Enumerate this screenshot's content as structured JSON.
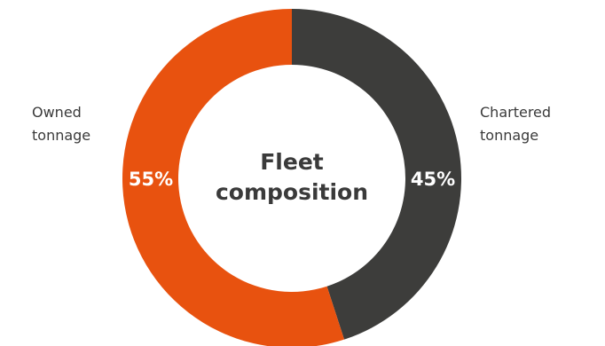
{
  "chart_data": {
    "type": "pie",
    "title_lines": [
      "Fleet",
      "composition"
    ],
    "slices": [
      {
        "label_lines": [
          "Chartered",
          "tonnage"
        ],
        "value": 45,
        "display": "45%",
        "color": "#3d3d3b"
      },
      {
        "label_lines": [
          "Owned",
          "tonnage"
        ],
        "value": 55,
        "display": "55%",
        "color": "#e8520f"
      }
    ]
  },
  "colors": {
    "text": "#3a3a3a",
    "value_label": "#ffffff",
    "background": "#ffffff"
  }
}
